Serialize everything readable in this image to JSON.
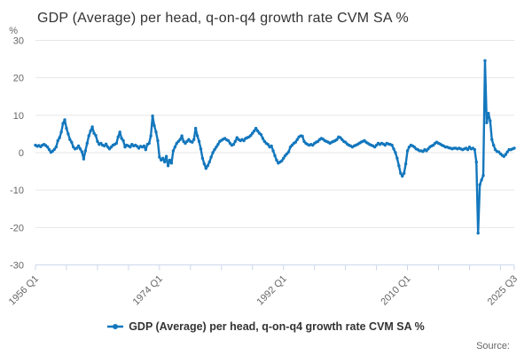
{
  "title": "GDP (Average) per head, q-on-q4 growth rate CVM SA %",
  "source_label": "Source:",
  "legend": {
    "marker_icon": "line-dot-icon",
    "label": "GDP (Average) per head, q-on-q4 growth rate CVM SA %"
  },
  "y_axis": {
    "unit": "%",
    "ticks": [
      30,
      20,
      10,
      0,
      -10,
      -20,
      -30
    ]
  },
  "x_axis": {
    "tick_labels": [
      "1956 Q1",
      "1974 Q1",
      "1992 Q1",
      "2010 Q1",
      "2025 Q3"
    ],
    "labeled_tick_indices": [
      0,
      72,
      144,
      216,
      278
    ],
    "minor_tick_every_quarters": 18
  },
  "colors": {
    "line": "#1377bd",
    "grid": "#e6e6e6",
    "axis": "#ccd6eb",
    "tick_text": "#666666",
    "title_text": "#333333",
    "source_text": "#666666"
  },
  "chart_data": {
    "type": "line",
    "title": "GDP (Average) per head, q-on-q4 growth rate CVM SA %",
    "series_name": "GDP (Average) per head, q-on-q4 growth rate CVM SA %",
    "x_start": "1956 Q1",
    "x_end": "2025 Q3",
    "frequency": "quarterly",
    "ylabel": "%",
    "ylim": [
      -30,
      30
    ],
    "grid": true,
    "legend_position": "bottom",
    "marker": "circle",
    "values": [
      2.0,
      1.7,
      1.9,
      1.6,
      2.0,
      2.2,
      1.9,
      1.5,
      0.8,
      0.1,
      0.4,
      0.9,
      1.5,
      3.2,
      4.0,
      5.5,
      7.8,
      8.8,
      6.5,
      5.0,
      3.5,
      2.8,
      1.5,
      1.0,
      1.2,
      1.8,
      1.0,
      0.2,
      -1.7,
      0.5,
      2.5,
      4.5,
      5.8,
      6.9,
      5.2,
      4.6,
      3.0,
      2.2,
      2.5,
      2.0,
      1.8,
      2.3,
      1.5,
      1.0,
      1.5,
      2.0,
      2.2,
      2.5,
      4.2,
      5.5,
      3.8,
      3.2,
      1.5,
      2.0,
      1.8,
      1.5,
      2.2,
      1.8,
      2.0,
      1.7,
      1.2,
      1.7,
      1.5,
      1.8,
      0.8,
      2.2,
      2.5,
      4.5,
      9.8,
      7.2,
      5.5,
      3.2,
      -1.2,
      -2.0,
      -1.5,
      -2.5,
      -1.0,
      -3.5,
      -2.0,
      -2.8,
      0.5,
      1.5,
      2.5,
      3.0,
      3.5,
      4.5,
      3.0,
      2.5,
      3.0,
      3.5,
      3.0,
      2.8,
      3.5,
      6.5,
      4.5,
      3.0,
      1.0,
      -1.5,
      -3.0,
      -4.2,
      -3.5,
      -2.5,
      -1.2,
      0.0,
      0.8,
      1.5,
      2.2,
      3.0,
      3.3,
      3.6,
      3.8,
      3.4,
      3.2,
      2.5,
      2.0,
      2.2,
      3.0,
      4.0,
      3.5,
      3.2,
      3.5,
      3.2,
      3.8,
      4.0,
      4.2,
      4.6,
      5.2,
      5.8,
      6.5,
      5.8,
      5.2,
      4.8,
      3.8,
      3.0,
      2.5,
      2.2,
      1.5,
      1.8,
      0.5,
      -0.8,
      -2.0,
      -2.8,
      -2.5,
      -2.2,
      -1.5,
      -0.8,
      -0.3,
      0.2,
      1.5,
      2.0,
      2.5,
      2.8,
      3.5,
      4.2,
      4.5,
      4.4,
      3.0,
      2.5,
      2.2,
      2.0,
      2.2,
      2.0,
      2.5,
      2.8,
      3.0,
      3.5,
      3.8,
      3.6,
      3.2,
      3.0,
      2.8,
      2.5,
      2.8,
      3.0,
      3.2,
      3.5,
      4.2,
      4.0,
      3.5,
      3.0,
      2.8,
      2.3,
      2.0,
      1.8,
      1.5,
      1.8,
      2.0,
      2.2,
      2.5,
      2.8,
      3.0,
      3.2,
      2.8,
      2.5,
      2.2,
      2.0,
      1.8,
      1.5,
      2.0,
      2.5,
      2.2,
      2.5,
      2.3,
      2.0,
      2.5,
      2.3,
      2.2,
      2.0,
      1.0,
      0.0,
      -1.5,
      -3.5,
      -5.5,
      -6.3,
      -5.5,
      -3.0,
      0.5,
      1.5,
      2.0,
      1.8,
      1.5,
      1.0,
      0.8,
      0.5,
      0.5,
      0.3,
      0.8,
      0.5,
      1.0,
      1.5,
      1.8,
      2.0,
      2.5,
      2.8,
      2.5,
      2.3,
      2.0,
      1.8,
      1.5,
      1.5,
      1.3,
      1.2,
      1.0,
      1.2,
      1.2,
      1.0,
      1.2,
      1.0,
      0.8,
      1.0,
      1.2,
      0.8,
      1.5,
      1.0,
      1.2,
      0.8,
      -2.5,
      -21.5,
      -8.6,
      -7.3,
      -6.1,
      24.6,
      8.0,
      10.5,
      8.5,
      3.5,
      2.0,
      0.8,
      0.3,
      0.2,
      -0.3,
      -0.7,
      -1.0,
      -0.5,
      0.2,
      0.8,
      0.8,
      1.0,
      1.2
    ]
  }
}
